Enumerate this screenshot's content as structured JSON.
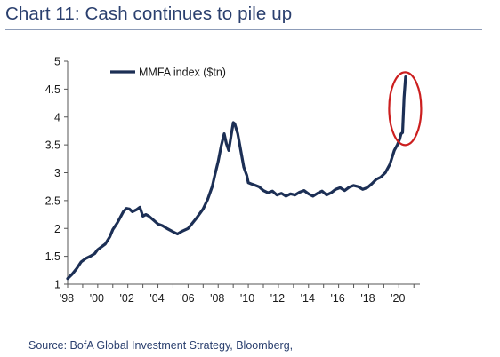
{
  "header": {
    "title": "Chart 11: Cash continues to pile up"
  },
  "footer": {
    "source": "Source: BofA Global Investment Strategy, Bloomberg,"
  },
  "colors": {
    "line": "#1c2f55",
    "axis": "#555555",
    "highlight": "#cc1f1f",
    "title": "#2a3f6e"
  },
  "chart_data": {
    "type": "line",
    "title": "",
    "xlabel": "",
    "ylabel": "",
    "xlim": [
      1998,
      2021.4
    ],
    "ylim": [
      1,
      5
    ],
    "grid": false,
    "legend_position": "top-left",
    "y_ticks": [
      1,
      1.5,
      2,
      2.5,
      3,
      3.5,
      4,
      4.5,
      5
    ],
    "y_tick_labels": [
      "1",
      "1.5",
      "2",
      "2.5",
      "3",
      "3.5",
      "4",
      "4.5",
      "5"
    ],
    "x_ticks": [
      1998,
      2000,
      2002,
      2004,
      2006,
      2008,
      2010,
      2012,
      2014,
      2016,
      2018,
      2020
    ],
    "x_tick_labels": [
      "'98",
      "'00",
      "'02",
      "'04",
      "'06",
      "'08",
      "'10",
      "'12",
      "'14",
      "'16",
      "'18",
      "'20"
    ],
    "annotation": "red circle highlighting 2020 spike",
    "series": [
      {
        "name": "MMFA index ($tn)",
        "x": [
          1998.0,
          1998.3,
          1998.6,
          1998.9,
          1999.2,
          1999.5,
          1999.8,
          2000.0,
          2000.3,
          2000.5,
          2000.8,
          2001.0,
          2001.3,
          2001.5,
          2001.7,
          2001.9,
          2002.1,
          2002.3,
          2002.6,
          2002.8,
          2003.0,
          2003.2,
          2003.4,
          2003.7,
          2004.0,
          2004.3,
          2004.6,
          2005.0,
          2005.3,
          2005.6,
          2006.0,
          2006.3,
          2006.6,
          2007.0,
          2007.3,
          2007.6,
          2007.8,
          2008.0,
          2008.2,
          2008.4,
          2008.55,
          2008.7,
          2008.85,
          2009.0,
          2009.1,
          2009.3,
          2009.5,
          2009.7,
          2009.9,
          2010.0,
          2010.2,
          2010.4,
          2010.7,
          2011.0,
          2011.3,
          2011.6,
          2011.9,
          2012.2,
          2012.5,
          2012.8,
          2013.1,
          2013.4,
          2013.7,
          2014.0,
          2014.3,
          2014.6,
          2014.9,
          2015.2,
          2015.5,
          2015.8,
          2016.1,
          2016.4,
          2016.7,
          2017.0,
          2017.3,
          2017.6,
          2017.9,
          2018.2,
          2018.5,
          2018.8,
          2019.1,
          2019.4,
          2019.7,
          2019.9,
          2020.05,
          2020.15,
          2020.25,
          2020.35,
          2020.45
        ],
        "values": [
          1.1,
          1.18,
          1.28,
          1.4,
          1.46,
          1.5,
          1.55,
          1.62,
          1.68,
          1.72,
          1.85,
          1.98,
          2.1,
          2.2,
          2.3,
          2.36,
          2.35,
          2.3,
          2.34,
          2.38,
          2.22,
          2.25,
          2.22,
          2.15,
          2.08,
          2.05,
          2.0,
          1.94,
          1.9,
          1.95,
          2.0,
          2.1,
          2.2,
          2.35,
          2.52,
          2.75,
          2.98,
          3.2,
          3.48,
          3.7,
          3.52,
          3.4,
          3.65,
          3.9,
          3.88,
          3.7,
          3.4,
          3.1,
          2.95,
          2.82,
          2.8,
          2.78,
          2.75,
          2.68,
          2.64,
          2.67,
          2.6,
          2.63,
          2.58,
          2.62,
          2.6,
          2.65,
          2.68,
          2.62,
          2.58,
          2.63,
          2.67,
          2.6,
          2.64,
          2.7,
          2.73,
          2.68,
          2.74,
          2.77,
          2.75,
          2.7,
          2.73,
          2.8,
          2.88,
          2.92,
          3.0,
          3.15,
          3.4,
          3.5,
          3.6,
          3.7,
          3.72,
          4.35,
          4.72
        ]
      }
    ]
  }
}
